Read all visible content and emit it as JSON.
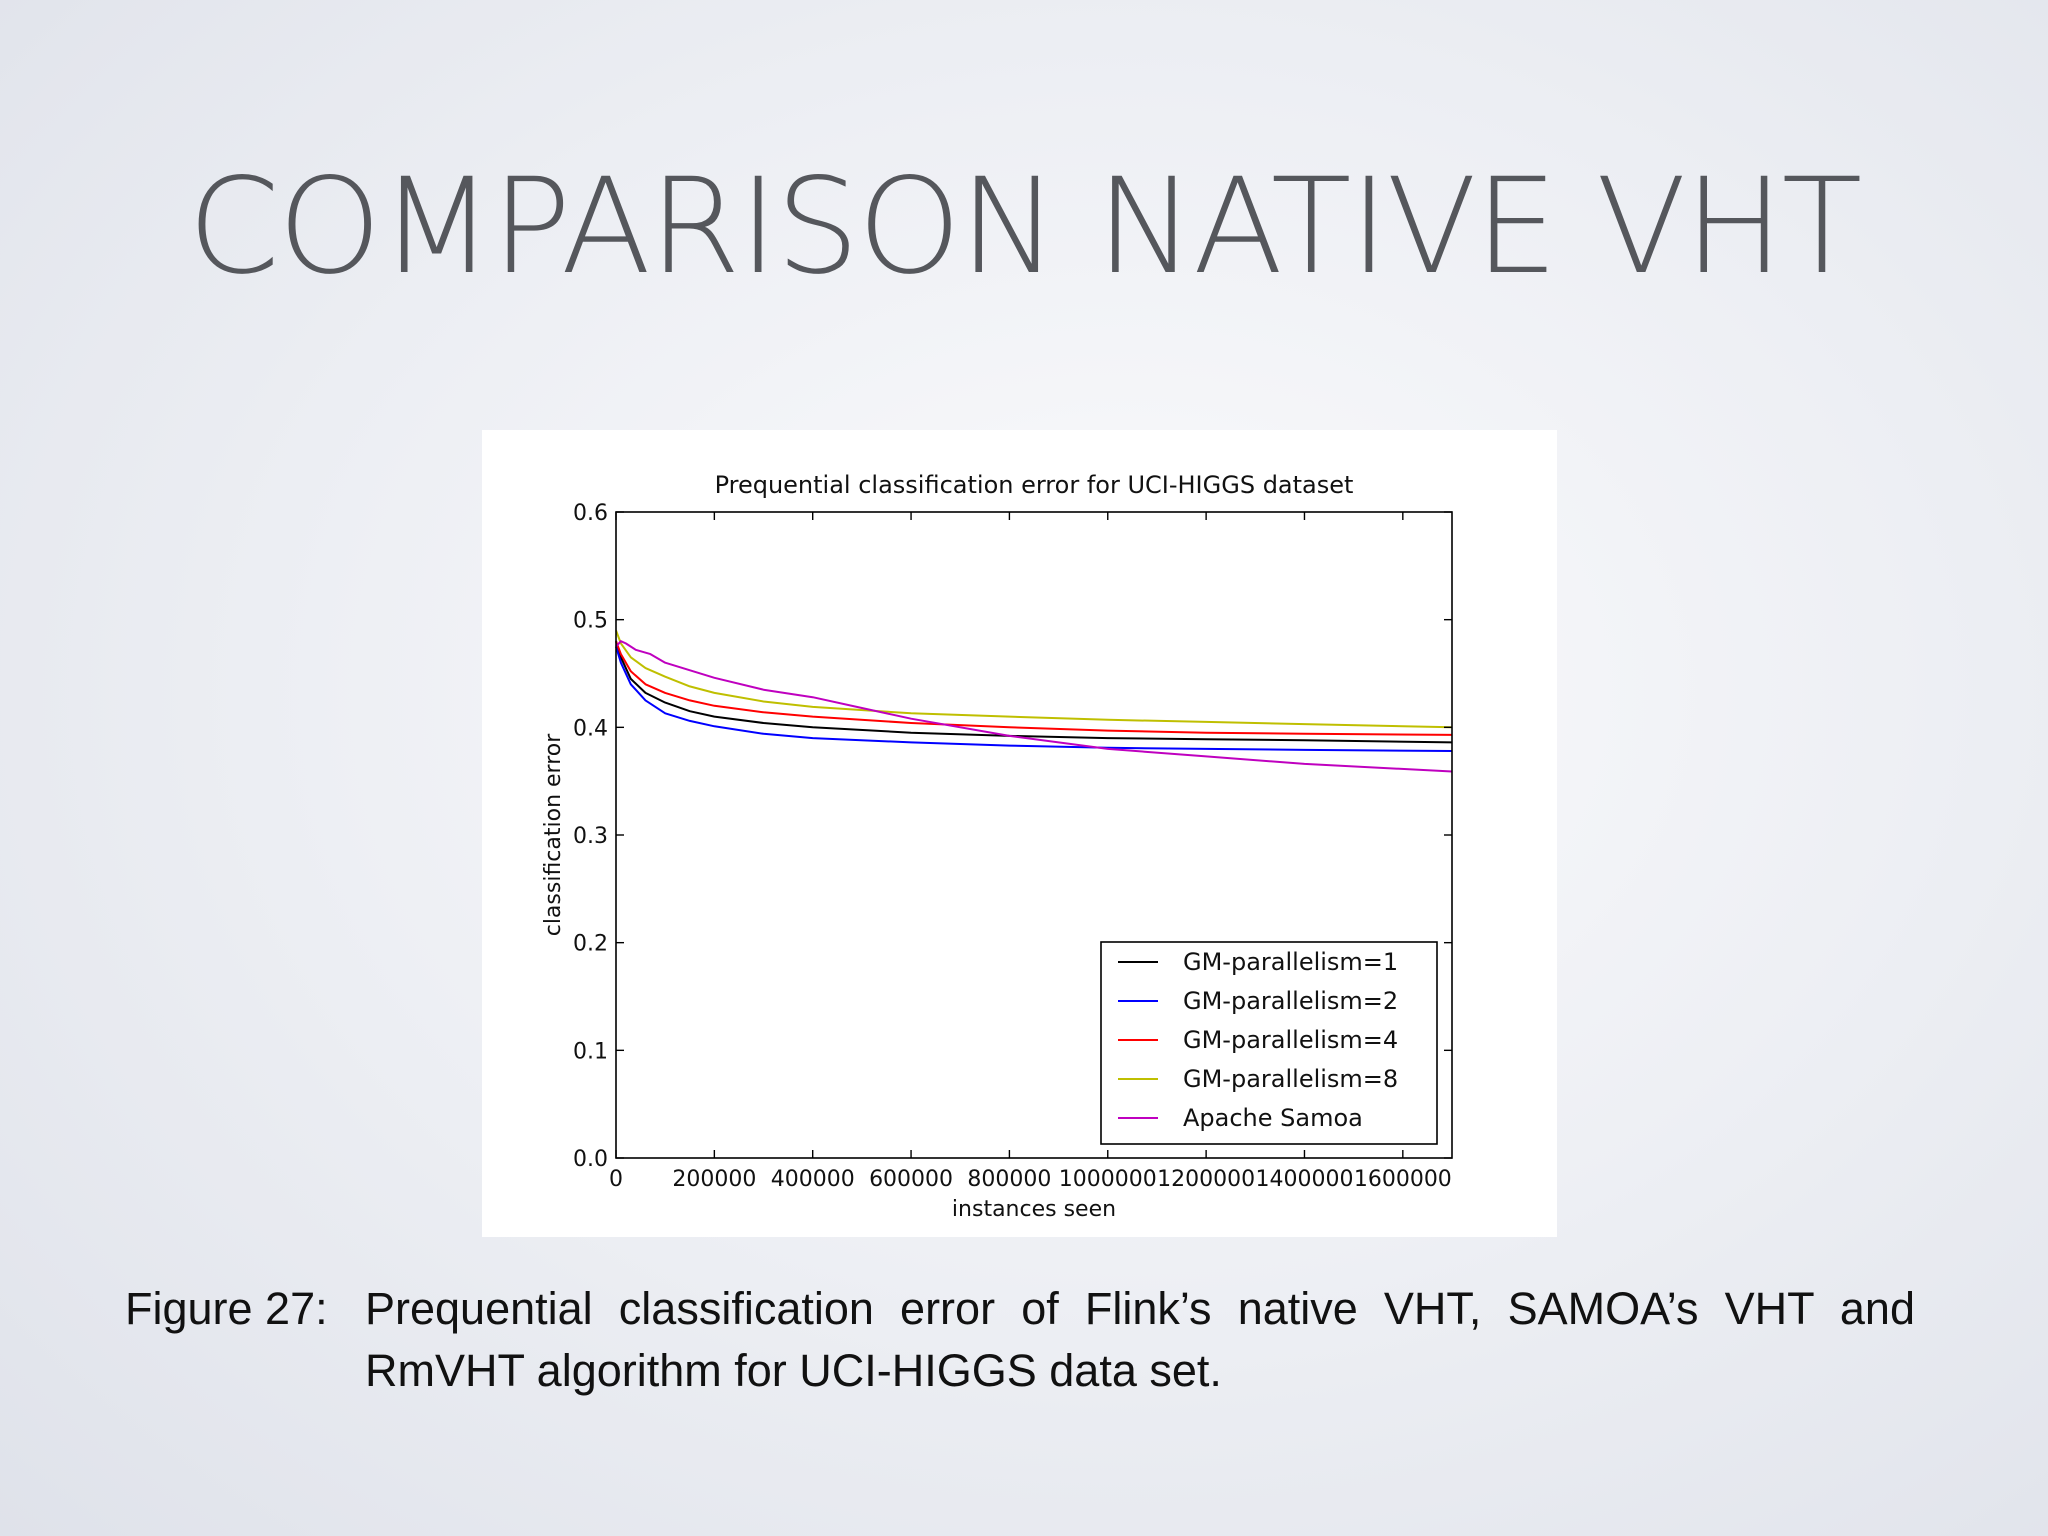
{
  "slide": {
    "title": "COMPARISON NATIVE VHT",
    "caption_label": "Figure 27:",
    "caption_text": "Prequential classification error of Flink’s native VHT, SAMOA’s VHT and RmVHT algorithm for UCI-HIGGS data set."
  },
  "chart_data": {
    "type": "line",
    "title": "Prequential classification error for UCI-HIGGS dataset",
    "xlabel": "instances seen",
    "ylabel": "classification error",
    "xlim": [
      0,
      1700000
    ],
    "ylim": [
      0,
      0.6
    ],
    "x_ticks": [
      0,
      200000,
      400000,
      600000,
      800000,
      1000000,
      1200000,
      1400000,
      1600000
    ],
    "x_tick_labels": [
      "0",
      "200000",
      "400000",
      "600000",
      "800000",
      "1000000",
      "1200000",
      "1400000",
      "1600000"
    ],
    "y_ticks": [
      0.0,
      0.1,
      0.2,
      0.3,
      0.4,
      0.5,
      0.6
    ],
    "y_tick_labels": [
      "0.0",
      "0.1",
      "0.2",
      "0.3",
      "0.4",
      "0.5",
      "0.6"
    ],
    "grid": false,
    "legend_position": "lower-right",
    "series": [
      {
        "name": "GM-parallelism=1",
        "color": "#000000",
        "x": [
          0,
          10000,
          30000,
          60000,
          100000,
          150000,
          200000,
          300000,
          400000,
          600000,
          800000,
          1000000,
          1200000,
          1400000,
          1700000
        ],
        "y": [
          0.48,
          0.465,
          0.445,
          0.432,
          0.423,
          0.415,
          0.41,
          0.404,
          0.4,
          0.395,
          0.392,
          0.39,
          0.389,
          0.388,
          0.386
        ]
      },
      {
        "name": "GM-parallelism=2",
        "color": "#0000ff",
        "x": [
          0,
          10000,
          30000,
          60000,
          100000,
          150000,
          200000,
          300000,
          400000,
          600000,
          800000,
          1000000,
          1200000,
          1400000,
          1700000
        ],
        "y": [
          0.475,
          0.46,
          0.44,
          0.425,
          0.413,
          0.406,
          0.401,
          0.394,
          0.39,
          0.386,
          0.383,
          0.381,
          0.38,
          0.379,
          0.378
        ]
      },
      {
        "name": "GM-parallelism=4",
        "color": "#ff0000",
        "x": [
          0,
          10000,
          30000,
          60000,
          100000,
          150000,
          200000,
          300000,
          400000,
          600000,
          800000,
          1000000,
          1200000,
          1400000,
          1700000
        ],
        "y": [
          0.48,
          0.468,
          0.452,
          0.44,
          0.432,
          0.425,
          0.42,
          0.414,
          0.41,
          0.404,
          0.4,
          0.397,
          0.395,
          0.394,
          0.393
        ]
      },
      {
        "name": "GM-parallelism=8",
        "color": "#bfbf00",
        "x": [
          0,
          10000,
          30000,
          60000,
          100000,
          150000,
          200000,
          300000,
          400000,
          600000,
          800000,
          1000000,
          1200000,
          1400000,
          1700000
        ],
        "y": [
          0.49,
          0.478,
          0.465,
          0.455,
          0.447,
          0.438,
          0.432,
          0.424,
          0.419,
          0.413,
          0.41,
          0.407,
          0.405,
          0.403,
          0.4
        ]
      },
      {
        "name": "Apache Samoa",
        "color": "#bf00bf",
        "x": [
          0,
          10000,
          20000,
          40000,
          70000,
          100000,
          200000,
          300000,
          400000,
          500000,
          600000,
          800000,
          1000000,
          1200000,
          1400000,
          1700000
        ],
        "y": [
          0.475,
          0.48,
          0.478,
          0.472,
          0.468,
          0.46,
          0.446,
          0.435,
          0.428,
          0.418,
          0.408,
          0.392,
          0.38,
          0.373,
          0.366,
          0.359
        ]
      }
    ]
  }
}
